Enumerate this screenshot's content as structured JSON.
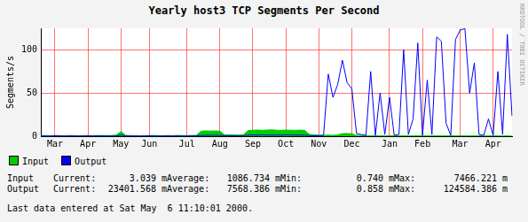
{
  "chart_data": {
    "type": "line",
    "title": "Yearly host3 TCP Segments Per Second",
    "ylabel": "Segments/s",
    "categories": [
      null,
      null,
      null,
      "Mar",
      null,
      null,
      null,
      null,
      null,
      null,
      "Apr",
      null,
      null,
      null,
      null,
      null,
      null,
      "May",
      null,
      null,
      null,
      null,
      null,
      "Jun",
      null,
      null,
      null,
      null,
      null,
      null,
      null,
      "Jul",
      null,
      null,
      null,
      null,
      null,
      null,
      "Aug",
      null,
      null,
      null,
      null,
      null,
      null,
      "Sep",
      null,
      null,
      null,
      null,
      null,
      null,
      "Oct",
      null,
      null,
      null,
      null,
      null,
      null,
      "Nov",
      null,
      null,
      null,
      null,
      null,
      null,
      "Dec",
      null,
      null,
      null,
      null,
      null,
      null,
      null,
      "Jan",
      null,
      null,
      null,
      null,
      null,
      null,
      "Feb",
      null,
      null,
      null,
      null,
      null,
      null,
      null,
      "Mar",
      null,
      null,
      null,
      null,
      null,
      null,
      "Apr",
      null,
      null,
      null,
      null
    ],
    "series": [
      {
        "name": "Input",
        "type": "area",
        "color": "#00cc00",
        "values": [
          0.8,
          0.7,
          0.6,
          0.9,
          0.7,
          0.6,
          0.8,
          0.7,
          0.6,
          0.7,
          0.8,
          0.7,
          0.9,
          0.8,
          0.7,
          0.9,
          1.2,
          5.5,
          1.0,
          0.8,
          0.7,
          0.6,
          0.7,
          0.8,
          0.9,
          0.7,
          0.6,
          0.8,
          0.7,
          0.9,
          0.8,
          0.7,
          0.9,
          1.0,
          5.8,
          6.2,
          6.0,
          6.1,
          5.9,
          1.5,
          1.8,
          1.6,
          1.4,
          1.7,
          6.5,
          7.0,
          7.2,
          6.9,
          7.1,
          7.4,
          7.0,
          6.8,
          7.2,
          7.0,
          6.9,
          7.1,
          6.8,
          2.0,
          1.5,
          1.2,
          1.0,
          1.3,
          1.1,
          1.5,
          3.0,
          3.2,
          2.8,
          1.0,
          0.8,
          0.6,
          0.5,
          0.6,
          0.4,
          0.5,
          0.6,
          0.5,
          0.4,
          0.6,
          0.5,
          0.4,
          0.5,
          0.4,
          0.5,
          0.6,
          0.4,
          0.5,
          0.4,
          0.5,
          0.6,
          0.4,
          0.5,
          0.4,
          0.5,
          0.4,
          0.3,
          0.4,
          0.5,
          0.4,
          0.3,
          0.4,
          0.003
        ]
      },
      {
        "name": "Output",
        "type": "line",
        "color": "#0000ff",
        "values": [
          0.2,
          0.3,
          0.2,
          0.4,
          0.3,
          0.2,
          0.3,
          0.4,
          0.2,
          0.3,
          0.3,
          0.2,
          0.3,
          0.4,
          0.3,
          0.2,
          0.3,
          1.5,
          0.3,
          0.2,
          0.3,
          0.2,
          0.3,
          0.4,
          0.3,
          0.2,
          0.3,
          0.4,
          0.2,
          0.3,
          0.3,
          0.2,
          0.3,
          0.4,
          0.8,
          1.0,
          0.9,
          1.1,
          0.9,
          0.5,
          0.6,
          0.5,
          0.4,
          0.5,
          1.2,
          1.4,
          1.3,
          1.5,
          1.2,
          1.4,
          1.3,
          1.2,
          1.5,
          1.3,
          1.4,
          1.2,
          1.3,
          0.8,
          0.6,
          0.5,
          1,
          72,
          45,
          60,
          88,
          62,
          55,
          3,
          2,
          1,
          75,
          1,
          50,
          2,
          45,
          1,
          2,
          100,
          2,
          20,
          108,
          1,
          65,
          2,
          115,
          110,
          15,
          1,
          112,
          123,
          124.6,
          50,
          85,
          2,
          1,
          20,
          1,
          75,
          2,
          118,
          23.4
        ]
      }
    ],
    "ylim": [
      0,
      125
    ],
    "yticks": [
      0,
      50,
      100
    ],
    "grid": true
  },
  "watermark": "RRDTOOL / TOBI OETIKER",
  "stats": {
    "columns": [
      "Current:",
      "Average:",
      "Min:",
      "Max:"
    ],
    "rows": [
      {
        "name": "Input",
        "values": [
          "3.039 m",
          "1086.734 m",
          "0.740 m",
          "7466.221 m"
        ]
      },
      {
        "name": "Output",
        "values": [
          "23401.568 m",
          "7568.386 m",
          "0.858 m",
          "124584.386 m"
        ]
      }
    ]
  },
  "footer": "Last data entered at Sat May  6 11:10:01 2000."
}
